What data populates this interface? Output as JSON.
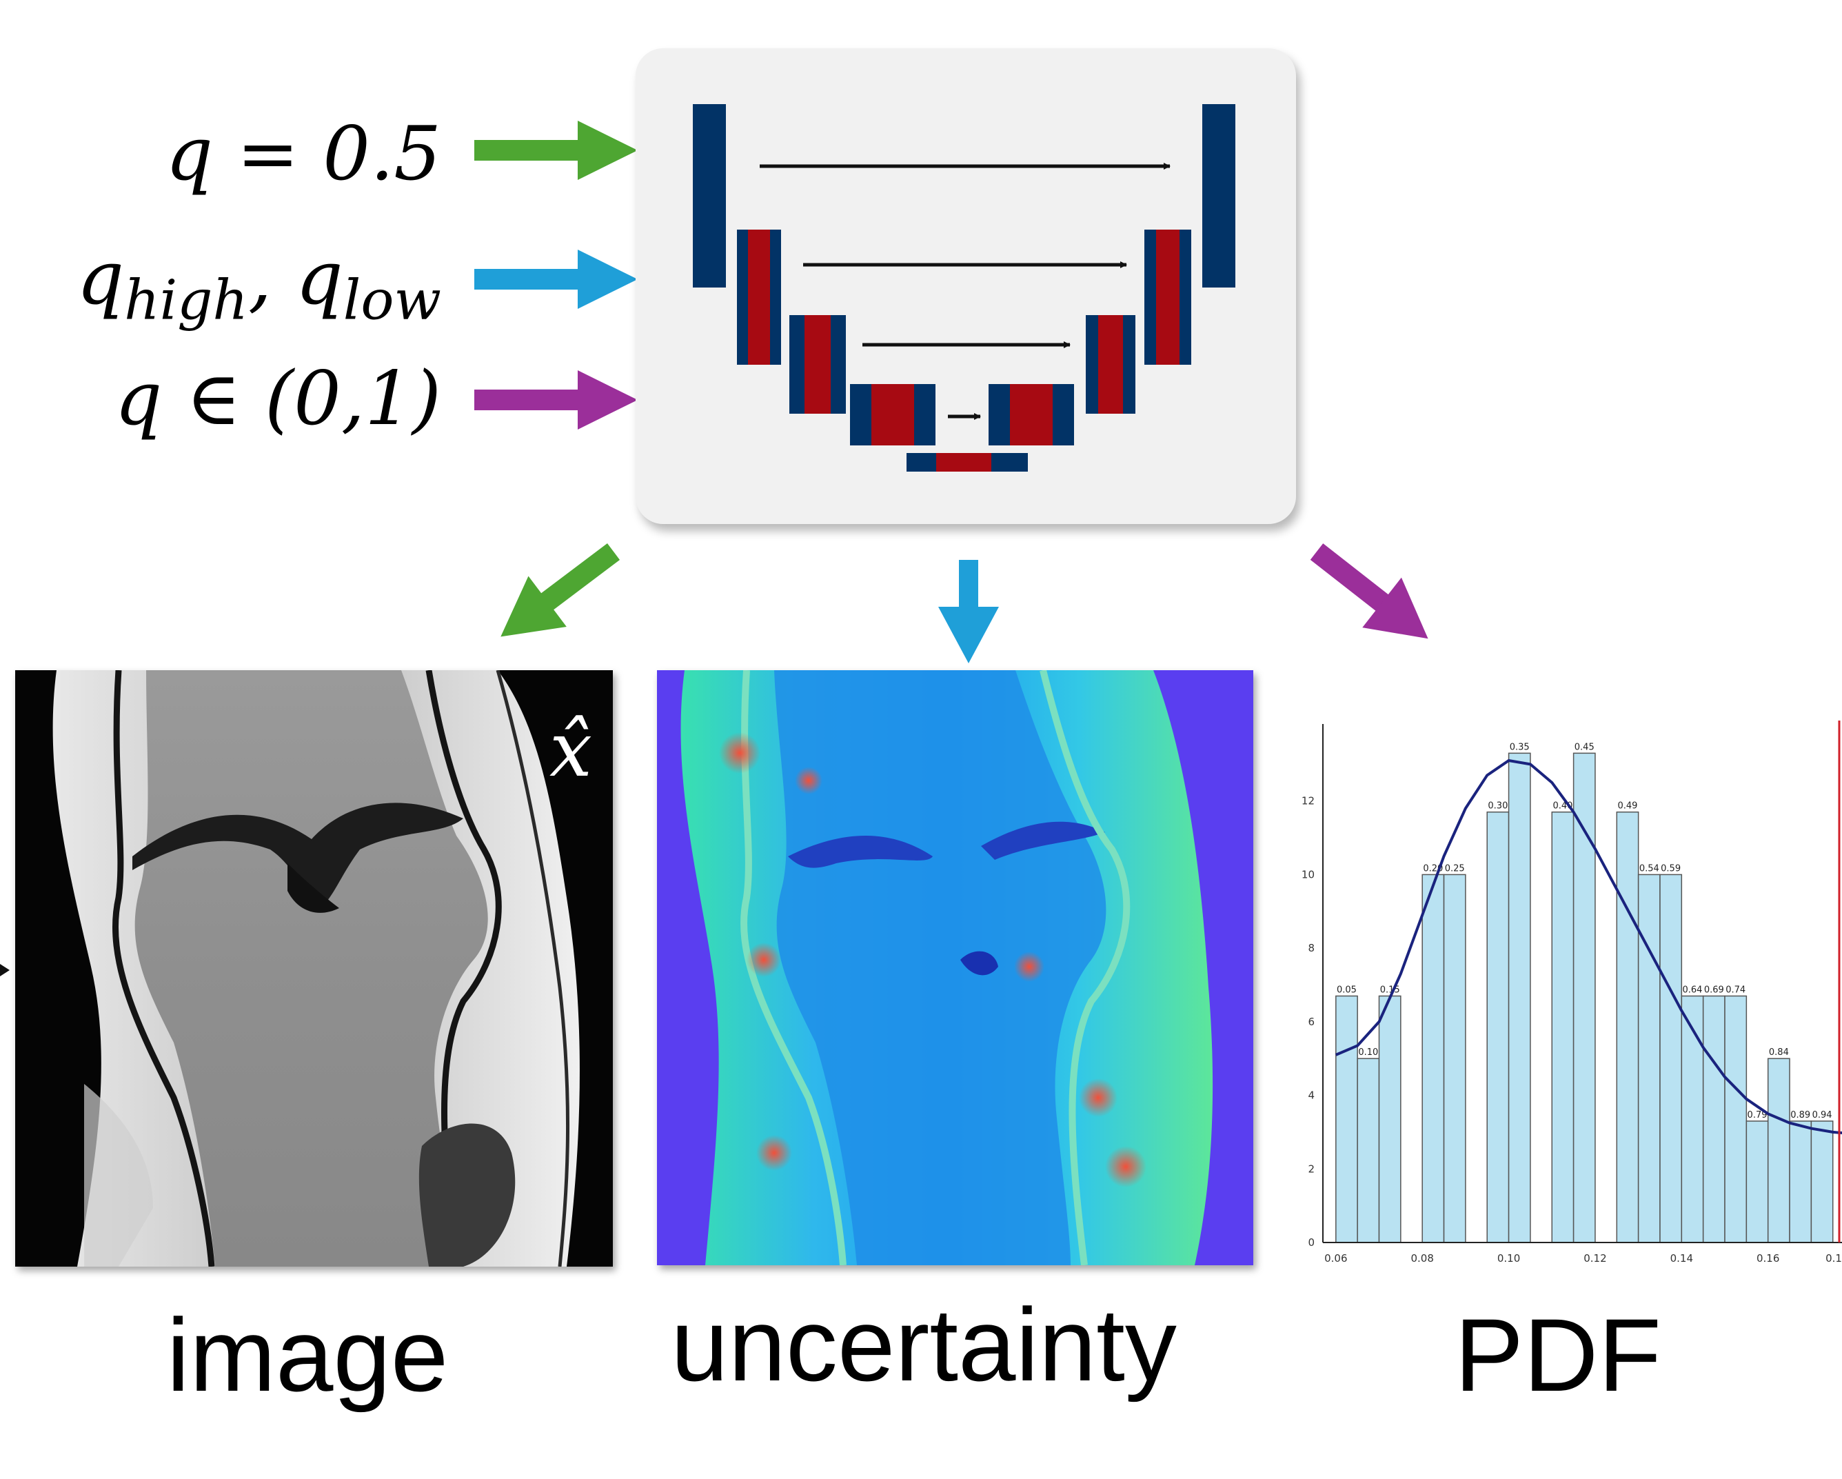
{
  "inputs": {
    "q_median": "q = 0.5",
    "q_high_low": {
      "q1": "q",
      "s1": "high",
      "sep": ", ",
      "q2": "q",
      "s2": "low"
    },
    "q_range": "q ∈ (0,1)"
  },
  "colors": {
    "green": "#4ea632",
    "blue": "#1f9fd8",
    "purple": "#9b2f9a",
    "unet_blue": "#023366",
    "unet_red": "#a70a12"
  },
  "outputs": {
    "image": {
      "caption": "image",
      "overlay": "x̂"
    },
    "uncertainty": {
      "caption": "uncertainty"
    },
    "pdf": {
      "caption": "PDF"
    }
  },
  "chart_data": {
    "type": "bar",
    "x": [
      0.0625,
      0.0675,
      0.0725,
      0.0825,
      0.0875,
      0.0975,
      0.1025,
      0.1125,
      0.1175,
      0.1275,
      0.1325,
      0.1375,
      0.1425,
      0.1475,
      0.1525,
      0.1575,
      0.1625,
      0.1675,
      0.1725
    ],
    "values": [
      6.7,
      5.0,
      6.7,
      10.0,
      10.0,
      11.7,
      13.3,
      11.7,
      13.3,
      11.7,
      10.0,
      10.0,
      6.7,
      6.7,
      6.7,
      3.3,
      5.0,
      3.3,
      3.3
    ],
    "bar_labels": [
      "0.05",
      "0.10",
      "0.15",
      "0.20",
      "0.25",
      "0.30",
      "0.35",
      "0.40",
      "0.45",
      "0.49",
      "0.54",
      "0.59",
      "0.64",
      "0.69",
      "0.74",
      "0.79",
      "0.84",
      "0.89",
      "0.94"
    ],
    "curve": {
      "x": [
        0.06,
        0.065,
        0.07,
        0.075,
        0.08,
        0.085,
        0.09,
        0.095,
        0.1,
        0.105,
        0.11,
        0.115,
        0.12,
        0.125,
        0.13,
        0.135,
        0.14,
        0.145,
        0.15,
        0.155,
        0.16,
        0.165,
        0.17,
        0.175,
        0.18
      ],
      "y": [
        5.1,
        5.35,
        6.0,
        7.3,
        8.9,
        10.5,
        11.8,
        12.7,
        13.1,
        13.0,
        12.5,
        11.7,
        10.7,
        9.6,
        8.5,
        7.4,
        6.3,
        5.3,
        4.5,
        3.9,
        3.5,
        3.25,
        3.1,
        3.0,
        2.95
      ]
    },
    "x_ticks": [
      "0.06",
      "0.08",
      "0.10",
      "0.12",
      "0.14",
      "0.16",
      "0.1"
    ],
    "y_ticks": [
      "0",
      "2",
      "4",
      "6",
      "8",
      "10",
      "12"
    ],
    "xlim": [
      0.057,
      0.176
    ],
    "ylim": [
      0,
      14
    ],
    "grid": false
  }
}
